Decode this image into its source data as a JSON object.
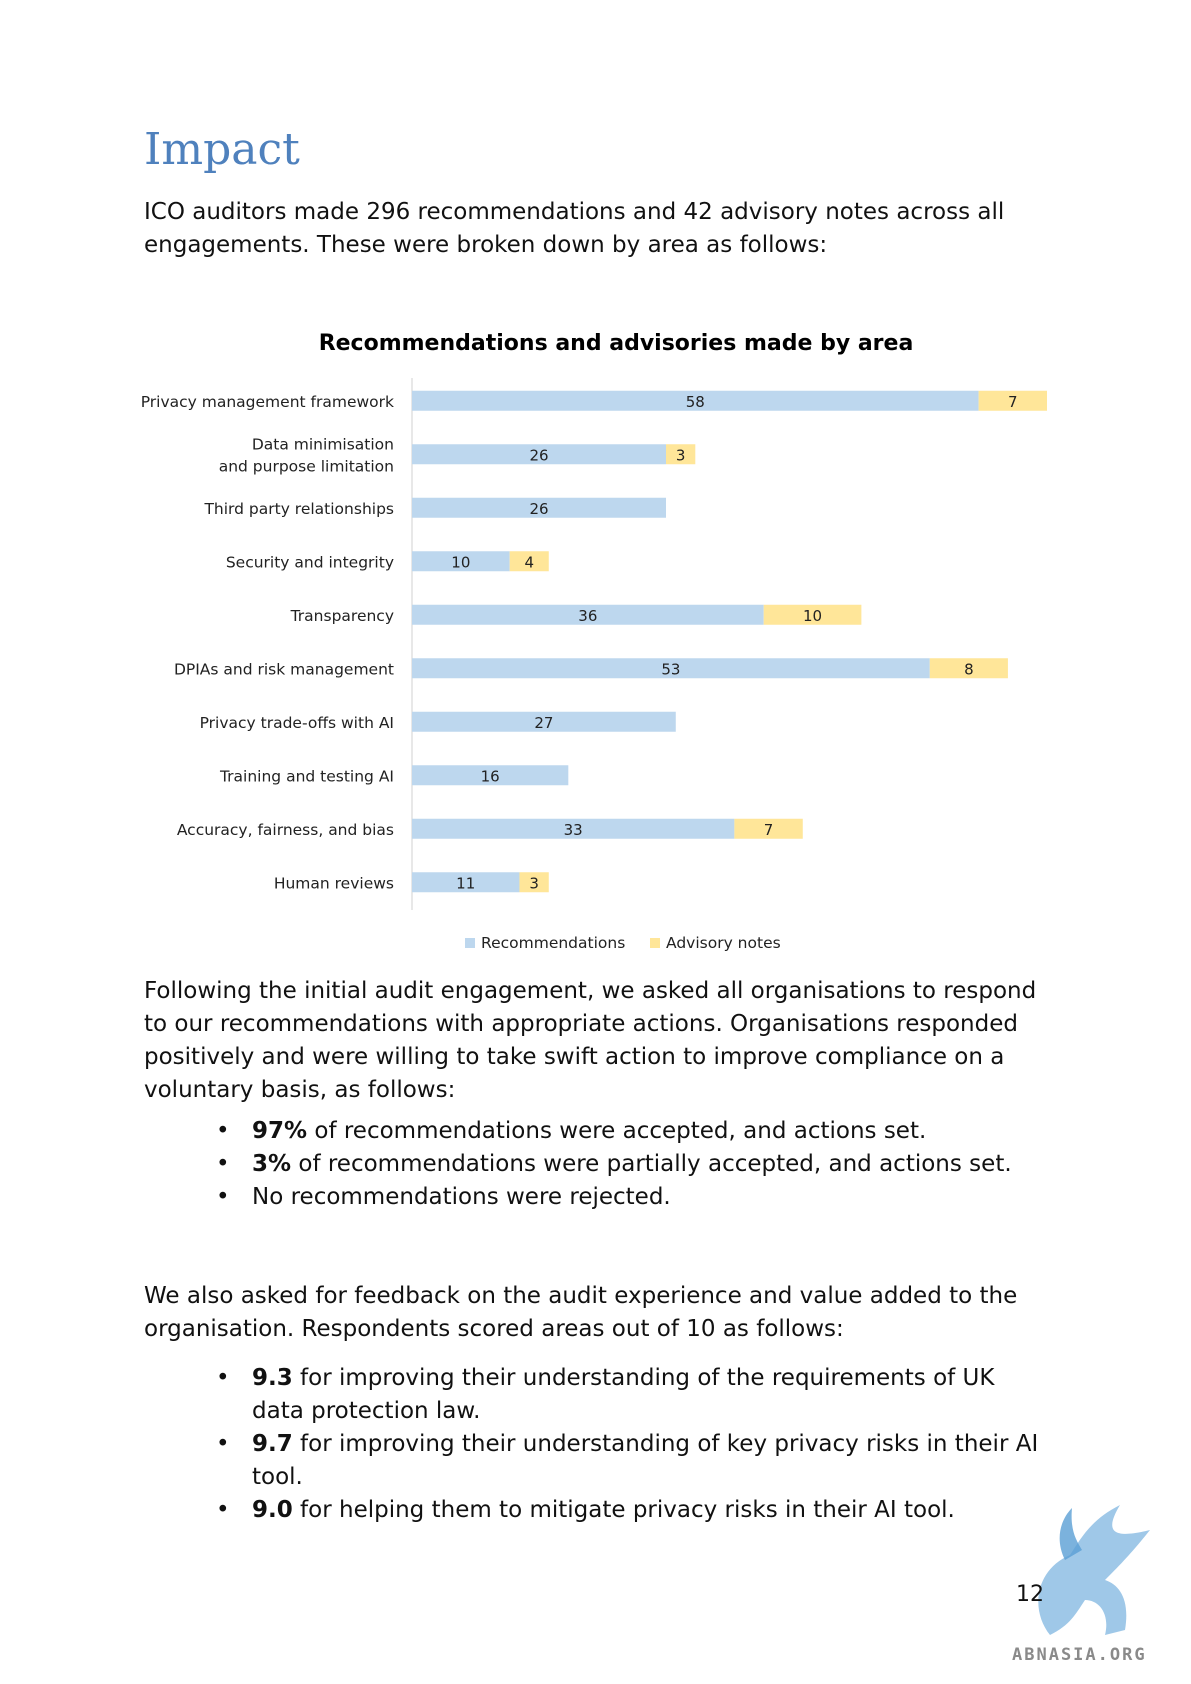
{
  "heading": "Impact",
  "intro": "ICO auditors made 296 recommendations and 42 advisory notes across all engagements. These were broken down by area as follows:",
  "chart_data": {
    "type": "bar",
    "orientation": "horizontal",
    "stacked": true,
    "title": "Recommendations and advisories made by area",
    "categories": [
      "Privacy management framework",
      "Data minimisation\nand purpose limitation",
      "Third party relationships",
      "Security and integrity",
      "Transparency",
      "DPIAs and risk management",
      "Privacy trade-offs with AI",
      "Training and testing AI",
      "Accuracy, fairness, and bias",
      "Human reviews"
    ],
    "series": [
      {
        "name": "Recommendations",
        "color": "#bdd7ee",
        "values": [
          58,
          26,
          26,
          10,
          36,
          53,
          27,
          16,
          33,
          11
        ]
      },
      {
        "name": "Advisory notes",
        "color": "#ffe699",
        "values": [
          7,
          3,
          0,
          4,
          10,
          8,
          0,
          0,
          7,
          3
        ]
      }
    ],
    "xlim": [
      0,
      65
    ],
    "grid": false,
    "legend": "bottom"
  },
  "followup": "Following the initial audit engagement, we asked all organisations to respond to our recommendations with appropriate actions. Organisations responded positively and were willing to take swift action to improve compliance on a voluntary basis, as follows:",
  "response_bullets": [
    {
      "bold": "97%",
      "text": " of recommendations were accepted, and actions set."
    },
    {
      "bold": "3%",
      "text": " of recommendations were partially accepted, and actions set."
    },
    {
      "bold": "",
      "text": "No recommendations were rejected."
    }
  ],
  "feedback_intro": "We also asked for feedback on the audit experience and value added to the organisation. Respondents scored areas out of 10 as follows:",
  "score_bullets": [
    {
      "bold": "9.3",
      "text": " for improving their understanding of the requirements of UK data protection law."
    },
    {
      "bold": "9.7",
      "text": " for improving their understanding of key privacy risks in their AI tool."
    },
    {
      "bold": "9.0",
      "text": " for helping them to mitigate privacy risks in their AI tool."
    }
  ],
  "page_number": "12",
  "watermark": "ABNASIA.ORG"
}
